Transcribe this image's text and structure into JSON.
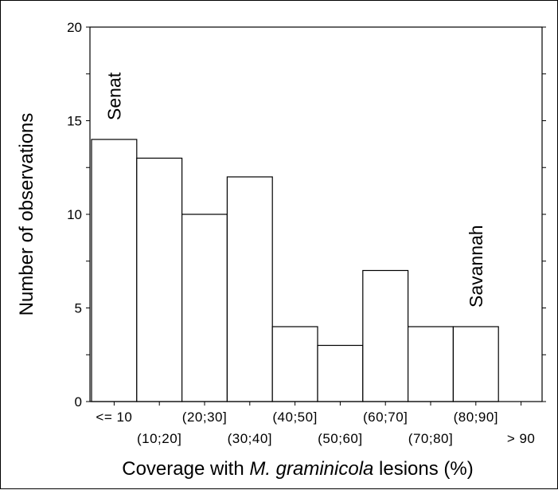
{
  "chart_data": {
    "type": "bar",
    "categories": [
      "<= 10",
      "(10;20]",
      "(20;30]",
      "(30;40]",
      "(40;50]",
      "(50;60]",
      "(60;70]",
      "(70;80]",
      "(80;90]",
      "> 90"
    ],
    "values": [
      14,
      13,
      10,
      12,
      4,
      3,
      7,
      4,
      4,
      0
    ],
    "xlabel": {
      "before": "Coverage with ",
      "italic": "M. graminicola",
      "after": " lesions (%)"
    },
    "ylabel": "Number of observations",
    "ylim": [
      0,
      20
    ],
    "yticks": [
      0,
      5,
      10,
      15,
      20
    ],
    "grid": false,
    "annotations": [
      {
        "text": "Senat",
        "category": "<= 10",
        "rotation": -90
      },
      {
        "text": "Savannah",
        "category": "(80;90]",
        "rotation": -90
      }
    ]
  }
}
